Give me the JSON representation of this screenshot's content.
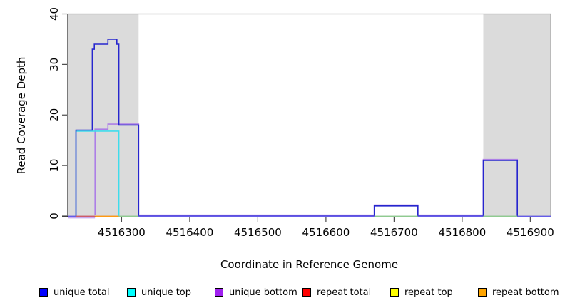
{
  "figure": {
    "xlabel": "Coordinate in Reference Genome",
    "ylabel": "Read Coverage Depth"
  },
  "legend": {
    "items": [
      {
        "label": "unique total",
        "color": "#0000FF"
      },
      {
        "label": "unique top",
        "color": "#00FFFF"
      },
      {
        "label": "unique bottom",
        "color": "#A020F0"
      },
      {
        "label": "repeat total",
        "color": "#FF0000"
      },
      {
        "label": "repeat top",
        "color": "#FFFF00"
      },
      {
        "label": "repeat bottom",
        "color": "#FFA500"
      }
    ]
  },
  "chart_data": {
    "type": "line",
    "subtype": "step",
    "title": "",
    "xlabel": "Coordinate in Reference Genome",
    "ylabel": "Read Coverage Depth",
    "xlim": [
      4516221,
      4516930
    ],
    "ylim": [
      0,
      40
    ],
    "xticks": [
      4516300,
      4516400,
      4516500,
      4516600,
      4516700,
      4516800,
      4516900
    ],
    "yticks": [
      0,
      10,
      20,
      30,
      40
    ],
    "grid": false,
    "legend_position": "bottom",
    "axis_color": "#333333",
    "border_color": "#999999",
    "shaded_regions": [
      {
        "from": 4516221,
        "to": 4516325,
        "color": "#DBDBDB"
      },
      {
        "from": 4516831,
        "to": 4516930,
        "color": "#DBDBDB"
      }
    ],
    "series": [
      {
        "name": "unique total",
        "color": "#2626CE",
        "offset": 0,
        "steps": [
          [
            4516221,
            0
          ],
          [
            4516233,
            17
          ],
          [
            4516257,
            33
          ],
          [
            4516260,
            34
          ],
          [
            4516280,
            35
          ],
          [
            4516293,
            34
          ],
          [
            4516296,
            18
          ],
          [
            4516325,
            0
          ],
          [
            4516671,
            2
          ],
          [
            4516735,
            0
          ],
          [
            4516831,
            11
          ],
          [
            4516881,
            0
          ],
          [
            4516930,
            0
          ]
        ]
      },
      {
        "name": "unique top",
        "color": "#3EDCEC",
        "offset": 1.4,
        "steps": [
          [
            4516221,
            0
          ],
          [
            4516233,
            17
          ],
          [
            4516296,
            0
          ],
          [
            4516930,
            0
          ]
        ]
      },
      {
        "name": "unique bottom",
        "color": "#AD7FE6",
        "offset": -1.3,
        "steps": [
          [
            4516221,
            0
          ],
          [
            4516261,
            17
          ],
          [
            4516280,
            18
          ],
          [
            4516325,
            0
          ],
          [
            4516671,
            2
          ],
          [
            4516735,
            0
          ],
          [
            4516831,
            11
          ],
          [
            4516881,
            0
          ],
          [
            4516930,
            0
          ]
        ]
      },
      {
        "name": "repeat total",
        "color": "#FF0000",
        "offset": 0,
        "steps": [
          [
            4516221,
            0
          ],
          [
            4516930,
            0
          ]
        ]
      },
      {
        "name": "repeat top",
        "color": "#FFFF00",
        "offset": 0,
        "steps": [
          [
            4516221,
            0
          ],
          [
            4516930,
            0
          ]
        ]
      },
      {
        "name": "repeat bottom",
        "color": "#FFA500",
        "offset": 0,
        "steps": [
          [
            4516221,
            0
          ],
          [
            4516930,
            0
          ]
        ]
      }
    ],
    "baseline_segments": [
      {
        "from": 4516221,
        "to": 4516261,
        "color": "#C9ABEF",
        "dy": 2.0
      },
      {
        "from": 4516221,
        "to": 4516233,
        "color": "#655CE8",
        "dy": 0
      },
      {
        "from": 4516233,
        "to": 4516261,
        "color": "#CD5B69",
        "dy": 0
      },
      {
        "from": 4516261,
        "to": 4516296,
        "color": "#FF9912",
        "dy": 0
      },
      {
        "from": 4516296,
        "to": 4516325,
        "color": "#8FCB90",
        "dy": 0
      },
      {
        "from": 4516325,
        "to": 4516671,
        "color": "#655CE8",
        "dy": 0
      },
      {
        "from": 4516671,
        "to": 4516735,
        "color": "#8FCB90",
        "dy": 0
      },
      {
        "from": 4516735,
        "to": 4516831,
        "color": "#655CE8",
        "dy": 0
      },
      {
        "from": 4516831,
        "to": 4516881,
        "color": "#8FCB90",
        "dy": 0
      },
      {
        "from": 4516881,
        "to": 4516930,
        "color": "#655CE8",
        "dy": 0
      }
    ]
  }
}
